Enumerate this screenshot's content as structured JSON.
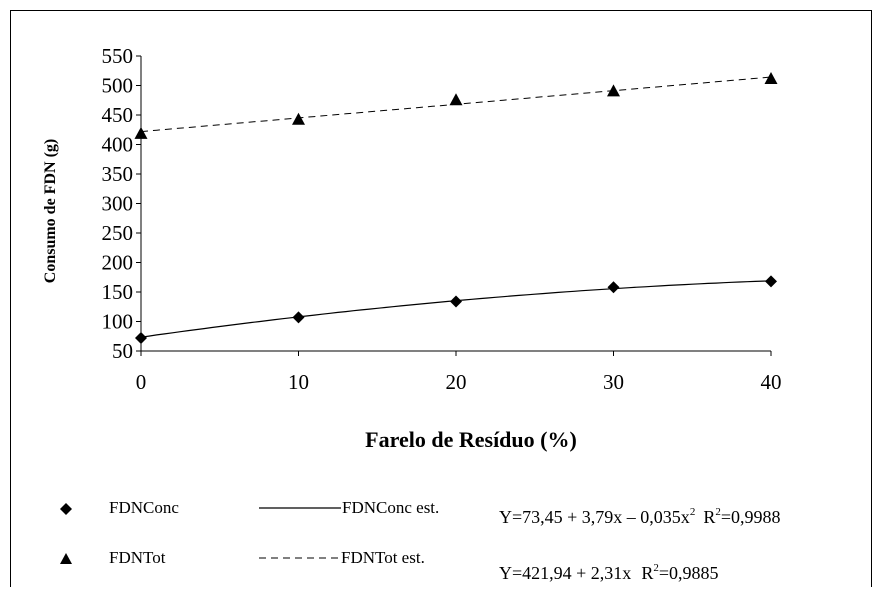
{
  "chart_data": {
    "type": "scatter",
    "xlabel": "Farelo de Resíduo (%)",
    "ylabel": "Consumo de FDN (g)",
    "xlim": [
      0,
      40
    ],
    "ylim": [
      50,
      550
    ],
    "x_ticks": [
      "0",
      "10",
      "20",
      "30",
      "40"
    ],
    "y_ticks": [
      "50",
      "100",
      "150",
      "200",
      "250",
      "300",
      "350",
      "400",
      "450",
      "500",
      "550"
    ],
    "grid": false,
    "legend_position": "bottom",
    "series": [
      {
        "name": "FDNConc",
        "marker": "diamond",
        "x": [
          0,
          10,
          20,
          30,
          40
        ],
        "values": [
          72,
          107,
          134,
          158,
          168
        ]
      },
      {
        "name": "FDNTot",
        "marker": "triangle",
        "x": [
          0,
          10,
          20,
          30,
          40
        ],
        "values": [
          418,
          442,
          475,
          490,
          511
        ]
      }
    ],
    "fits": [
      {
        "name": "FDNConc est.",
        "line": "solid",
        "model": "quadratic",
        "coefficients": [
          73.45,
          3.79,
          -0.035
        ],
        "equation_main": "Y=73,45 + 3,79x – 0,035x",
        "equation_sup": "2",
        "r2_prefix": "R",
        "r2_sup": "2",
        "r2_value": "=0,9988"
      },
      {
        "name": "FDNTot est.",
        "line": "dashed",
        "model": "linear",
        "coefficients": [
          421.94,
          2.31
        ],
        "equation_main": "Y=421,94 + 2,31x",
        "r2_prefix": "R",
        "r2_sup": "2",
        "r2_value": "=0,9885"
      }
    ]
  }
}
